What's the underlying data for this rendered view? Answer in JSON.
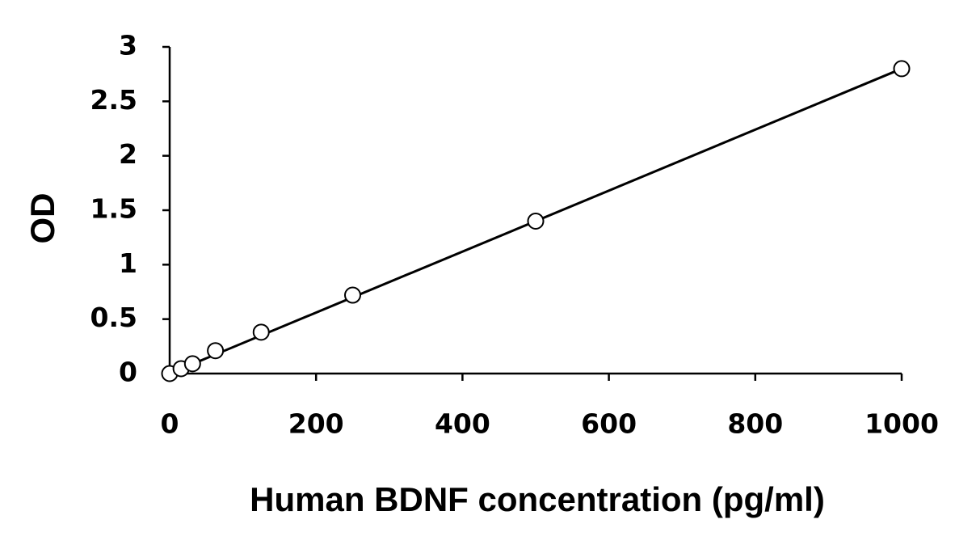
{
  "chart_data": {
    "type": "scatter",
    "x_label": "Human BDNF concentration (pg/ml)",
    "y_label": "OD",
    "x": [
      0,
      15.6,
      31.25,
      62.5,
      125,
      250,
      500,
      1000
    ],
    "values": [
      0,
      0.045,
      0.09,
      0.21,
      0.38,
      0.72,
      1.4,
      2.8
    ],
    "color": "#000000",
    "trendline": {
      "x": [
        0,
        1000
      ],
      "values": [
        0,
        2.8
      ]
    },
    "xlim": [
      0,
      1000
    ],
    "xticks": [
      0,
      200,
      400,
      600,
      800,
      1000
    ],
    "ylim": [
      0,
      3
    ],
    "yticks": [
      0,
      0.5,
      1,
      1.5,
      2,
      2.5,
      3
    ],
    "grid": false
  }
}
